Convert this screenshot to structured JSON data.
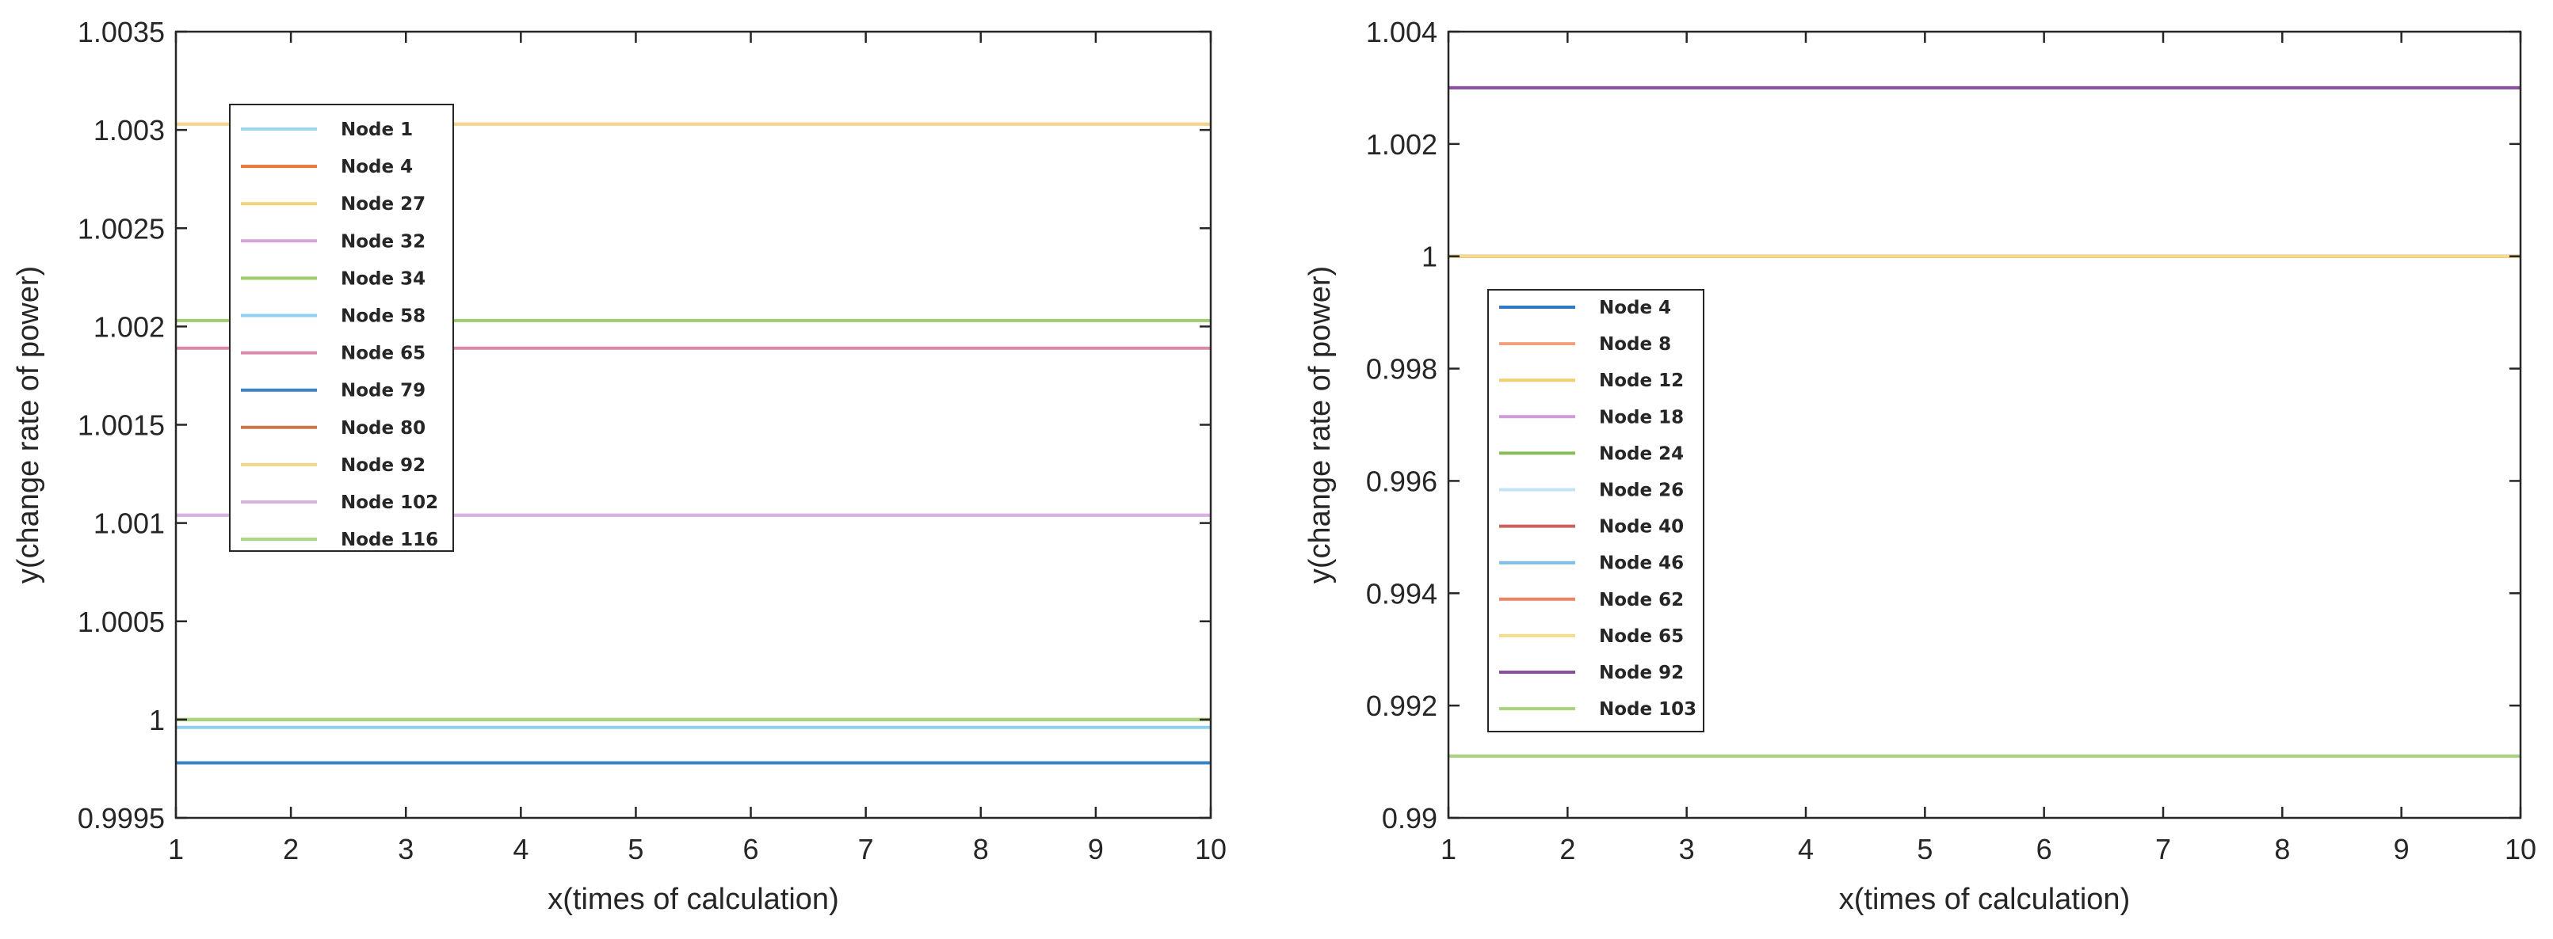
{
  "chart_data": [
    {
      "type": "line",
      "title": "",
      "xlabel": "x(times of calculation)",
      "ylabel": "y(change rate of power)",
      "xlim": [
        1,
        10
      ],
      "ylim": [
        0.9995,
        1.0035
      ],
      "grid": false,
      "legend_position": "top-left",
      "xticks": [
        {
          "v": 1,
          "label": "1"
        },
        {
          "v": 2,
          "label": "2"
        },
        {
          "v": 3,
          "label": "3"
        },
        {
          "v": 4,
          "label": "4"
        },
        {
          "v": 5,
          "label": "5"
        },
        {
          "v": 6,
          "label": "6"
        },
        {
          "v": 7,
          "label": "7"
        },
        {
          "v": 8,
          "label": "8"
        },
        {
          "v": 9,
          "label": "9"
        },
        {
          "v": 10,
          "label": "10"
        }
      ],
      "yticks": [
        {
          "v": 0.9995,
          "label": "0.9995"
        },
        {
          "v": 1.0,
          "label": "1"
        },
        {
          "v": 1.0005,
          "label": "1.0005"
        },
        {
          "v": 1.001,
          "label": "1.001"
        },
        {
          "v": 1.0015,
          "label": "1.0015"
        },
        {
          "v": 1.002,
          "label": "1.002"
        },
        {
          "v": 1.0025,
          "label": "1.0025"
        },
        {
          "v": 1.003,
          "label": "1.003"
        },
        {
          "v": 1.0035,
          "label": "1.0035"
        }
      ],
      "series": [
        {
          "name": "Node 1",
          "color": "#9dd5f2",
          "x": [
            1,
            10
          ],
          "values": [
            0.99978,
            0.99978
          ]
        },
        {
          "name": "Node 4",
          "color": "#e8773a",
          "x": [
            1,
            10
          ],
          "values": [
            1.0,
            1.0
          ]
        },
        {
          "name": "Node 27",
          "color": "#f2d27a",
          "x": [
            1,
            10
          ],
          "values": [
            1.00303,
            1.00303
          ]
        },
        {
          "name": "Node 32",
          "color": "#d8a2d8",
          "x": [
            1,
            10
          ],
          "values": [
            1.00104,
            1.00104
          ]
        },
        {
          "name": "Node 34",
          "color": "#9ccc6c",
          "x": [
            1,
            10
          ],
          "values": [
            1.00203,
            1.00203
          ]
        },
        {
          "name": "Node 58",
          "color": "#8fd0ee",
          "x": [
            1,
            10
          ],
          "values": [
            0.99996,
            0.99996
          ]
        },
        {
          "name": "Node 65",
          "color": "#d88aa8",
          "x": [
            1,
            10
          ],
          "values": [
            1.00189,
            1.00189
          ]
        },
        {
          "name": "Node 79",
          "color": "#3b82c4",
          "x": [
            1,
            10
          ],
          "values": [
            0.99978,
            0.99978
          ]
        },
        {
          "name": "Node 80",
          "color": "#c7784a",
          "x": [
            1,
            10
          ],
          "values": [
            1.0,
            1.0
          ]
        },
        {
          "name": "Node 92",
          "color": "#f2d58a",
          "x": [
            1,
            10
          ],
          "values": [
            1.00303,
            1.00303
          ]
        },
        {
          "name": "Node 102",
          "color": "#d9b2e0",
          "x": [
            1,
            10
          ],
          "values": [
            1.00104,
            1.00104
          ]
        },
        {
          "name": "Node 116",
          "color": "#a6d67e",
          "x": [
            1,
            10
          ],
          "values": [
            1.0,
            1.0
          ]
        }
      ]
    },
    {
      "type": "line",
      "title": "",
      "xlabel": "x(times of calculation)",
      "ylabel": "y(change rate of power)",
      "xlim": [
        1,
        10
      ],
      "ylim": [
        0.99,
        1.004
      ],
      "grid": false,
      "legend_position": "middle-left",
      "xticks": [
        {
          "v": 1,
          "label": "1"
        },
        {
          "v": 2,
          "label": "2"
        },
        {
          "v": 3,
          "label": "3"
        },
        {
          "v": 4,
          "label": "4"
        },
        {
          "v": 5,
          "label": "5"
        },
        {
          "v": 6,
          "label": "6"
        },
        {
          "v": 7,
          "label": "7"
        },
        {
          "v": 8,
          "label": "8"
        },
        {
          "v": 9,
          "label": "9"
        },
        {
          "v": 10,
          "label": "10"
        }
      ],
      "yticks": [
        {
          "v": 0.99,
          "label": "0.99"
        },
        {
          "v": 0.992,
          "label": "0.992"
        },
        {
          "v": 0.994,
          "label": "0.994"
        },
        {
          "v": 0.996,
          "label": "0.996"
        },
        {
          "v": 0.998,
          "label": "0.998"
        },
        {
          "v": 1.0,
          "label": "1"
        },
        {
          "v": 1.002,
          "label": "1.002"
        },
        {
          "v": 1.004,
          "label": "1.004"
        }
      ],
      "series": [
        {
          "name": "Node 4",
          "color": "#2e7bc4",
          "x": [
            1,
            10
          ],
          "values": [
            1.0,
            1.0
          ]
        },
        {
          "name": "Node 8",
          "color": "#f2a07a",
          "x": [
            1,
            10
          ],
          "values": [
            1.0,
            1.0
          ]
        },
        {
          "name": "Node 12",
          "color": "#f0d070",
          "x": [
            1,
            10
          ],
          "values": [
            1.0,
            1.0
          ]
        },
        {
          "name": "Node 18",
          "color": "#cf9ad8",
          "x": [
            1,
            10
          ],
          "values": [
            1.003,
            1.003
          ]
        },
        {
          "name": "Node 24",
          "color": "#86bd58",
          "x": [
            1,
            10
          ],
          "values": [
            0.9911,
            0.9911
          ]
        },
        {
          "name": "Node 26",
          "color": "#c2e3f5",
          "x": [
            1,
            10
          ],
          "values": [
            1.0,
            1.0
          ]
        },
        {
          "name": "Node 40",
          "color": "#c8625a",
          "x": [
            1,
            10
          ],
          "values": [
            1.0,
            1.0
          ]
        },
        {
          "name": "Node 46",
          "color": "#7dbde8",
          "x": [
            1,
            10
          ],
          "values": [
            1.0,
            1.0
          ]
        },
        {
          "name": "Node 62",
          "color": "#ee8262",
          "x": [
            1,
            10
          ],
          "values": [
            1.0,
            1.0
          ]
        },
        {
          "name": "Node 65",
          "color": "#f5dc8a",
          "x": [
            1,
            10
          ],
          "values": [
            1.0,
            1.0
          ]
        },
        {
          "name": "Node 92",
          "color": "#8a4f9e",
          "x": [
            1,
            10
          ],
          "values": [
            1.003,
            1.003
          ]
        },
        {
          "name": "Node 103",
          "color": "#a8d27c",
          "x": [
            1,
            10
          ],
          "values": [
            0.9911,
            0.9911
          ]
        }
      ]
    }
  ]
}
